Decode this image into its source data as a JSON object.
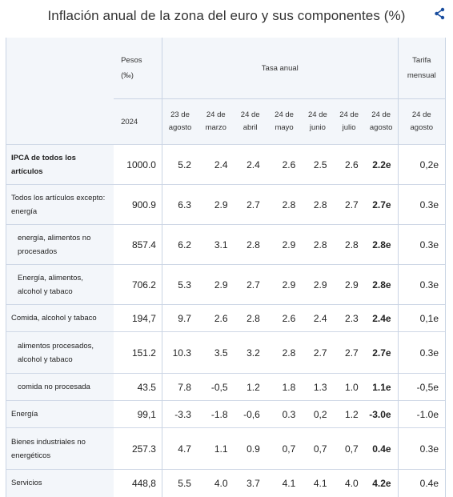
{
  "title": "Inflación anual de la zona del euro y sus componentes (%)",
  "share_icon": "share-icon",
  "header": {
    "weights": "Pesos\n(‰)",
    "annual_rate": "Tasa anual",
    "monthly_rate": "Tarifa\nmensual",
    "weight_year": "2024",
    "dates": [
      "23 de\nagosto",
      "24 de\nmarzo",
      "24 de\nabril",
      "24 de\nmayo",
      "24 de\njunio",
      "24 de\njulio",
      "24 de\nagosto"
    ],
    "monthly_date": "24 de\nagosto"
  },
  "rows": [
    {
      "label": "IPCA de todos los\nartículos",
      "weight": "1000.0",
      "values": [
        "5.2",
        "2.4",
        "2.4",
        "2.6",
        "2.5",
        "2.6",
        "2.2e"
      ],
      "monthly": "0,2e"
    },
    {
      "label": "Todos los artículos excepto:\n  energía",
      "weight": "900.9",
      "values": [
        "6.3",
        "2.9",
        "2.7",
        "2.8",
        "2.8",
        "2.7",
        "2.7e"
      ],
      "monthly": "0.3e"
    },
    {
      "label": "energía, alimentos no\nprocesados",
      "weight": "857.4",
      "values": [
        "6.2",
        "3.1",
        "2.8",
        "2.9",
        "2.8",
        "2.8",
        "2.8e"
      ],
      "monthly": "0.3e"
    },
    {
      "label": "Energía, alimentos,\nalcohol y tabaco",
      "weight": "706.2",
      "values": [
        "5.3",
        "2.9",
        "2.7",
        "2.9",
        "2.9",
        "2.9",
        "2.8e"
      ],
      "monthly": "0.3e"
    },
    {
      "label": "Comida, alcohol y tabaco",
      "weight": "194,7",
      "values": [
        "9.7",
        "2.6",
        "2.8",
        "2.6",
        "2.4",
        "2.3",
        "2.4e"
      ],
      "monthly": "0,1e"
    },
    {
      "label": "alimentos procesados,\nalcohol y tabaco",
      "weight": "151.2",
      "values": [
        "10.3",
        "3.5",
        "3.2",
        "2.8",
        "2.7",
        "2.7",
        "2.7e"
      ],
      "monthly": "0.3e"
    },
    {
      "label": "comida no procesada",
      "weight": "43.5",
      "values": [
        "7.8",
        "-0,5",
        "1.2",
        "1.8",
        "1.3",
        "1.0",
        "1.1e"
      ],
      "monthly": "-0,5e"
    },
    {
      "label": "Energía",
      "weight": "99,1",
      "values": [
        "-3.3",
        "-1.8",
        "-0,6",
        "0.3",
        "0,2",
        "1.2",
        "-3.0e"
      ],
      "monthly": "-1.0e"
    },
    {
      "label": "Bienes industriales no\nenergéticos",
      "weight": "257.3",
      "values": [
        "4.7",
        "1.1",
        "0.9",
        "0,7",
        "0,7",
        "0,7",
        "0.4e"
      ],
      "monthly": "0.3e"
    },
    {
      "label": "Servicios",
      "weight": "448,8",
      "values": [
        "5.5",
        "4.0",
        "3.7",
        "4.1",
        "4.1",
        "4.0",
        "4.2e"
      ],
      "monthly": "0.4e"
    }
  ]
}
